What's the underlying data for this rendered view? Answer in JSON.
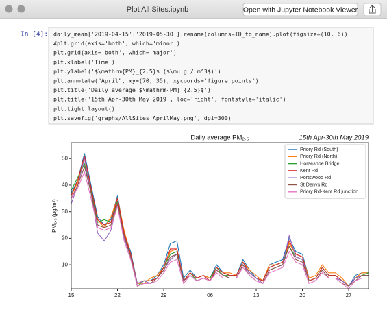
{
  "window": {
    "title": "Plot All Sites.ipynb",
    "button": "Open with Jupyter Notebook Viewer"
  },
  "cell": {
    "prompt": "In [4]:",
    "code": [
      "daily_mean['2019-04-15':'2019-05-30'].rename(columns=ID_to_name).plot(figsize=(10, 6))",
      "#plt.grid(axis='both', which='minor')",
      "plt.grid(axis='both', which='major')",
      "plt.xlabel('Time')",
      "plt.ylabel('$\\mathrm{PM}_{2.5}$ ($\\mu g / m^3$)')",
      "plt.annotate(\"April\", xy=(70, 35), xycoords='figure points')",
      "plt.title('Daily average $\\mathrm{PM}_{2.5}$')",
      "plt.title('15th Apr-30th May 2019', loc='right', fontstyle='italic')",
      "plt.tight_layout()",
      "plt.savefig('graphs/AllSites_AprilMay.png', dpi=300)"
    ]
  },
  "chart_data": {
    "type": "line",
    "title": "Daily average PM₂.₅",
    "subtitle": "15th Apr-30th May 2019",
    "y_label": "PM₂.₅ (μg/m³)",
    "categories": [
      "15",
      null,
      null,
      null,
      null,
      null,
      null,
      "22",
      null,
      null,
      null,
      null,
      null,
      null,
      "29",
      null,
      null,
      null,
      null,
      null,
      null,
      "06",
      null,
      null,
      null,
      null,
      null,
      null,
      "13",
      null,
      null,
      null,
      null,
      null,
      null,
      "20",
      null,
      null,
      null,
      null,
      null,
      null,
      "27",
      null,
      null,
      null
    ],
    "ylim": [
      1,
      56
    ],
    "yticks": [
      10,
      20,
      30,
      40,
      50
    ],
    "legend": "upper right",
    "series": [
      {
        "name": "Priory Rd (South)",
        "color": "#1f77b4",
        "values": [
          37,
          42,
          52,
          40,
          28,
          25,
          27,
          36,
          22,
          15,
          3,
          4,
          4,
          6,
          10,
          18,
          19,
          5,
          8,
          5,
          6,
          5,
          10,
          7,
          6,
          6,
          12,
          8,
          5,
          4,
          10,
          11,
          12,
          20,
          15,
          14,
          5,
          5,
          9,
          6,
          6,
          4,
          2,
          6,
          7,
          7
        ]
      },
      {
        "name": "Priory Rd (North)",
        "color": "#ff7f0e",
        "values": [
          36,
          41,
          50,
          38,
          27,
          24,
          28,
          35,
          23,
          14,
          3,
          3,
          5,
          6,
          9,
          15,
          16,
          4,
          7,
          5,
          6,
          5,
          9,
          7,
          7,
          6,
          11,
          8,
          6,
          4,
          10,
          10,
          11,
          18,
          14,
          13,
          5,
          6,
          10,
          7,
          7,
          5,
          2,
          5,
          7,
          7
        ]
      },
      {
        "name": "Horseshoe Bridge",
        "color": "#2ca02c",
        "values": [
          38,
          43,
          48,
          38,
          26,
          27,
          26,
          34,
          21,
          14,
          2,
          4,
          4,
          5,
          9,
          14,
          15,
          4,
          7,
          4,
          5,
          5,
          9,
          6,
          6,
          6,
          11,
          7,
          5,
          4,
          9,
          10,
          11,
          17,
          13,
          12,
          4,
          5,
          9,
          6,
          6,
          4,
          2,
          5,
          6,
          7
        ]
      },
      {
        "name": "Kent Rd",
        "color": "#d62728",
        "values": [
          36,
          42,
          51,
          39,
          27,
          25,
          26,
          35,
          22,
          14,
          3,
          4,
          4,
          5,
          9,
          16,
          16,
          4,
          7,
          5,
          6,
          4,
          9,
          7,
          6,
          6,
          11,
          7,
          5,
          4,
          9,
          10,
          11,
          19,
          14,
          13,
          4,
          5,
          9,
          6,
          6,
          4,
          2,
          5,
          6,
          6
        ]
      },
      {
        "name": "Portswood Rd",
        "color": "#9467bd",
        "values": [
          33,
          40,
          50,
          37,
          22,
          19,
          23,
          33,
          20,
          13,
          3,
          4,
          3,
          5,
          8,
          12,
          14,
          4,
          6,
          4,
          5,
          4,
          8,
          6,
          5,
          5,
          10,
          7,
          5,
          3,
          8,
          9,
          10,
          21,
          13,
          12,
          4,
          4,
          8,
          5,
          5,
          4,
          2,
          5,
          6,
          6
        ]
      },
      {
        "name": "St Denys Rd",
        "color": "#8c564b",
        "values": [
          35,
          40,
          47,
          37,
          25,
          24,
          25,
          33,
          21,
          13,
          2,
          3,
          3,
          5,
          8,
          13,
          14,
          4,
          6,
          4,
          5,
          4,
          8,
          6,
          5,
          5,
          10,
          6,
          4,
          3,
          8,
          9,
          10,
          17,
          12,
          11,
          4,
          4,
          8,
          5,
          5,
          3,
          2,
          4,
          6,
          6
        ]
      },
      {
        "name": "Priory Rd-Kent Rd junction",
        "color": "#e377c2",
        "values": [
          35,
          39,
          45,
          35,
          24,
          23,
          24,
          32,
          19,
          12,
          2,
          3,
          3,
          4,
          7,
          11,
          12,
          3,
          6,
          4,
          5,
          4,
          7,
          5,
          5,
          5,
          9,
          6,
          4,
          3,
          7,
          8,
          9,
          15,
          11,
          10,
          3,
          4,
          7,
          5,
          5,
          3,
          1,
          4,
          5,
          5
        ]
      }
    ]
  }
}
